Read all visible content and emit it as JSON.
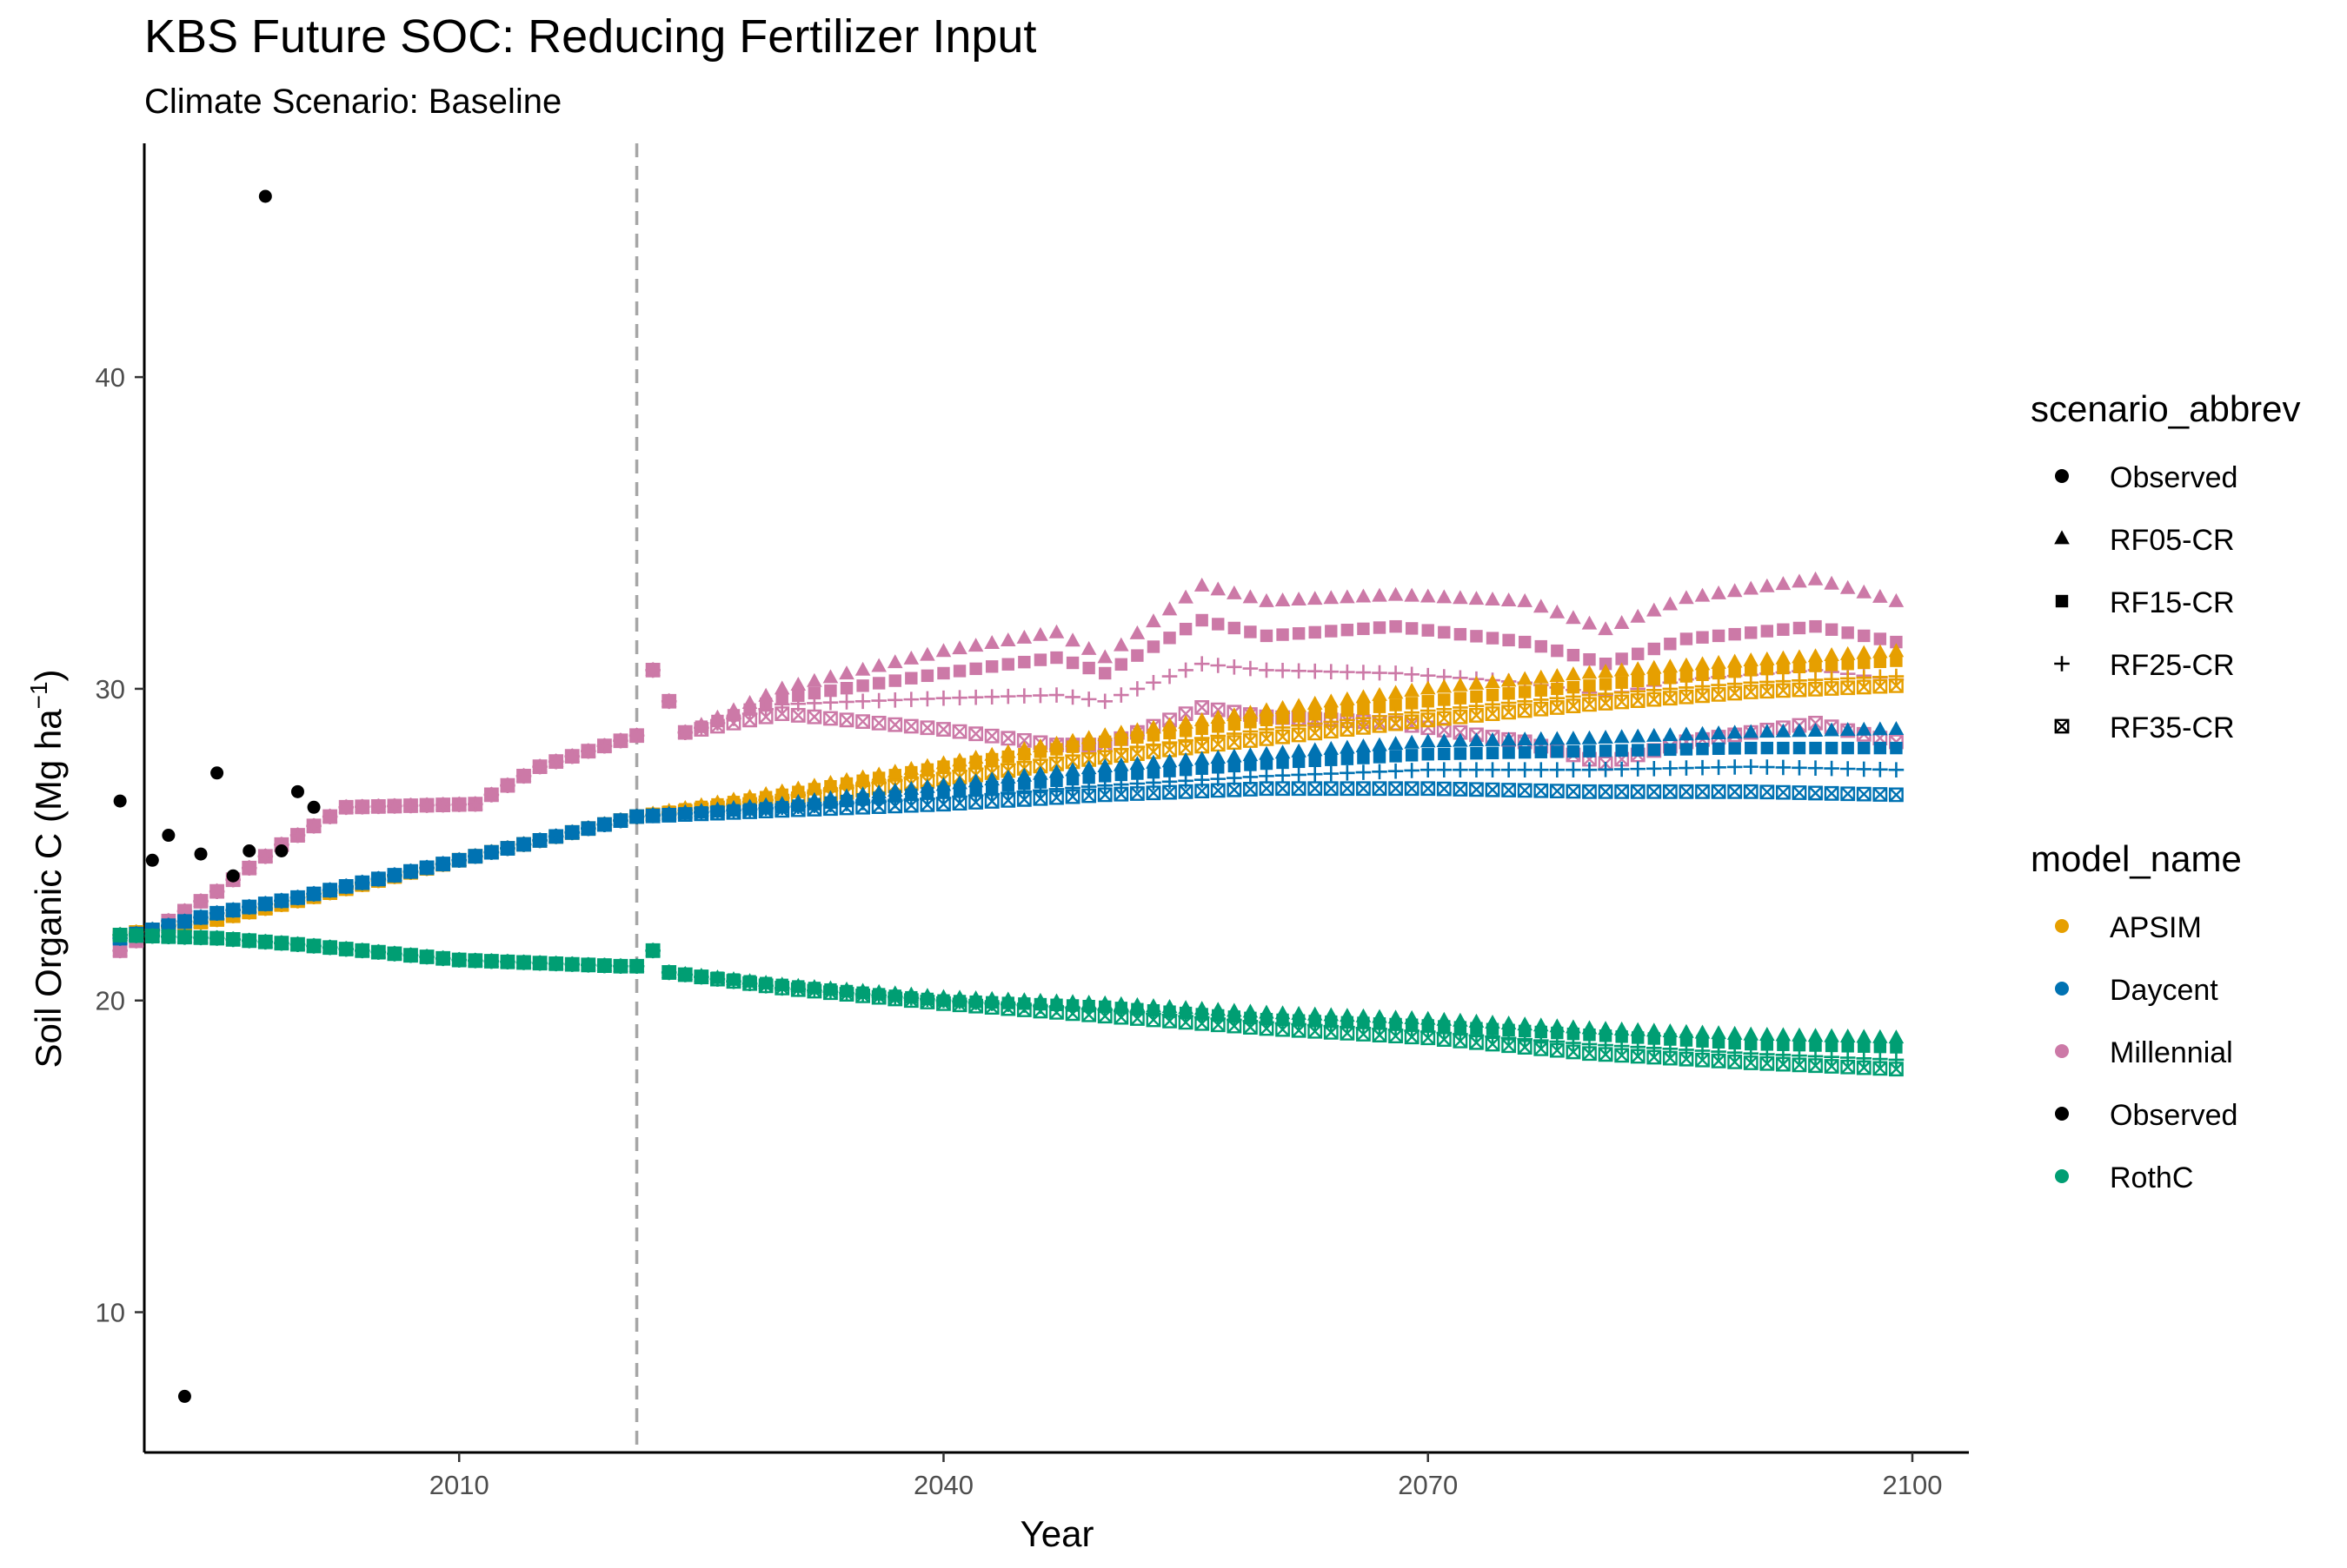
{
  "chart_data": {
    "type": "scatter",
    "title": "KBS  Future SOC: Reducing Fertilizer Input",
    "subtitle": "Climate Scenario: Baseline",
    "xlabel": "Year",
    "ylabel": "Soil Organic C (Mg ha",
    "ylabel_sup": "−1",
    "ylabel_end": ")",
    "xlim": [
      1990.5,
      2103.5
    ],
    "ylim": [
      5.5,
      47.5
    ],
    "x_ticks": [
      2010,
      2040,
      2070,
      2100
    ],
    "x_tick_labels": [
      "2010",
      "2040",
      "2070",
      "2100"
    ],
    "y_ticks": [
      10,
      20,
      30,
      40
    ],
    "y_tick_labels": [
      "10",
      "20",
      "30",
      "40"
    ],
    "grid": false,
    "legend_position": "right",
    "reference_line": {
      "x": 2021,
      "style": "dashed",
      "color": "#a6a6a6"
    },
    "colors": {
      "APSIM": "#E69F00",
      "Daycent": "#0072B2",
      "Millennial": "#CC79A7",
      "Observed": "#000000",
      "RothC": "#009E73"
    },
    "legend_scenario": {
      "title": "scenario_abbrev",
      "items": [
        {
          "label": "Observed",
          "shape": "circle"
        },
        {
          "label": "RF05-CR",
          "shape": "triangle"
        },
        {
          "label": "RF15-CR",
          "shape": "square"
        },
        {
          "label": "RF25-CR",
          "shape": "plus"
        },
        {
          "label": "RF35-CR",
          "shape": "boxed-x"
        }
      ]
    },
    "legend_model": {
      "title": "model_name",
      "items": [
        {
          "label": "APSIM",
          "color": "#E69F00"
        },
        {
          "label": "Daycent",
          "color": "#0072B2"
        },
        {
          "label": "Millennial",
          "color": "#CC79A7"
        },
        {
          "label": "Observed",
          "color": "#000000"
        },
        {
          "label": "RothC",
          "color": "#009E73"
        }
      ]
    },
    "observed": {
      "x": [
        1989,
        1991,
        1992,
        1994,
        1995,
        1996,
        1997,
        1998,
        1999,
        2000,
        2001
      ],
      "y": [
        26.4,
        24.5,
        25.3,
        24.7,
        27.3,
        24.0,
        24.8,
        45.8,
        24.8,
        26.7,
        26.2
      ]
    },
    "observed_low": {
      "x": [
        1993
      ],
      "y": [
        7.3
      ]
    },
    "series": [
      {
        "model": "Millennial",
        "scenario": "RF05-CR",
        "anchors": [
          [
            1989,
            21.6
          ],
          [
            1995,
            23.5
          ],
          [
            1999,
            25.0
          ],
          [
            2003,
            26.2
          ],
          [
            2011,
            26.3
          ],
          [
            2015,
            27.5
          ],
          [
            2021,
            28.5
          ],
          [
            2022,
            30.6
          ],
          [
            2024,
            28.6
          ],
          [
            2030,
            30.0
          ],
          [
            2040,
            31.2
          ],
          [
            2047,
            31.8
          ],
          [
            2050,
            31.0
          ],
          [
            2056,
            33.3
          ],
          [
            2060,
            32.8
          ],
          [
            2068,
            33.0
          ],
          [
            2076,
            32.8
          ],
          [
            2081,
            31.9
          ],
          [
            2086,
            32.9
          ],
          [
            2094,
            33.5
          ],
          [
            2099,
            32.8
          ]
        ]
      },
      {
        "model": "Millennial",
        "scenario": "RF15-CR",
        "anchors": [
          [
            1989,
            21.6
          ],
          [
            1995,
            23.5
          ],
          [
            1999,
            25.0
          ],
          [
            2003,
            26.2
          ],
          [
            2011,
            26.3
          ],
          [
            2015,
            27.5
          ],
          [
            2021,
            28.5
          ],
          [
            2022,
            30.6
          ],
          [
            2024,
            28.6
          ],
          [
            2030,
            29.7
          ],
          [
            2040,
            30.5
          ],
          [
            2047,
            31.0
          ],
          [
            2050,
            30.5
          ],
          [
            2056,
            32.2
          ],
          [
            2060,
            31.7
          ],
          [
            2068,
            32.0
          ],
          [
            2076,
            31.5
          ],
          [
            2081,
            30.8
          ],
          [
            2086,
            31.6
          ],
          [
            2094,
            32.0
          ],
          [
            2099,
            31.5
          ]
        ]
      },
      {
        "model": "Millennial",
        "scenario": "RF25-CR",
        "anchors": [
          [
            1989,
            21.6
          ],
          [
            1995,
            23.5
          ],
          [
            1999,
            25.0
          ],
          [
            2003,
            26.2
          ],
          [
            2011,
            26.3
          ],
          [
            2015,
            27.5
          ],
          [
            2021,
            28.5
          ],
          [
            2022,
            30.6
          ],
          [
            2024,
            28.6
          ],
          [
            2030,
            29.5
          ],
          [
            2040,
            29.7
          ],
          [
            2047,
            29.8
          ],
          [
            2050,
            29.6
          ],
          [
            2056,
            30.8
          ],
          [
            2060,
            30.6
          ],
          [
            2068,
            30.5
          ],
          [
            2076,
            30.2
          ],
          [
            2081,
            29.8
          ],
          [
            2086,
            30.3
          ],
          [
            2094,
            30.6
          ],
          [
            2099,
            30.3
          ]
        ]
      },
      {
        "model": "Millennial",
        "scenario": "RF35-CR",
        "anchors": [
          [
            1989,
            21.6
          ],
          [
            1995,
            23.5
          ],
          [
            1999,
            25.0
          ],
          [
            2003,
            26.2
          ],
          [
            2011,
            26.3
          ],
          [
            2015,
            27.5
          ],
          [
            2021,
            28.5
          ],
          [
            2022,
            30.6
          ],
          [
            2024,
            28.6
          ],
          [
            2030,
            29.2
          ],
          [
            2040,
            28.7
          ],
          [
            2047,
            28.2
          ],
          [
            2050,
            28.2
          ],
          [
            2056,
            29.4
          ],
          [
            2060,
            29.1
          ],
          [
            2068,
            28.9
          ],
          [
            2076,
            28.3
          ],
          [
            2081,
            27.6
          ],
          [
            2086,
            28.3
          ],
          [
            2094,
            28.9
          ],
          [
            2099,
            28.3
          ]
        ]
      },
      {
        "model": "APSIM",
        "scenario": "RF05-CR",
        "anchors": [
          [
            1989,
            22.1
          ],
          [
            1995,
            22.6
          ],
          [
            2000,
            23.2
          ],
          [
            2010,
            24.5
          ],
          [
            2021,
            25.9
          ],
          [
            2030,
            26.7
          ],
          [
            2040,
            27.6
          ],
          [
            2050,
            28.5
          ],
          [
            2060,
            29.3
          ],
          [
            2070,
            30.0
          ],
          [
            2080,
            30.5
          ],
          [
            2090,
            30.9
          ],
          [
            2099,
            31.2
          ]
        ]
      },
      {
        "model": "APSIM",
        "scenario": "RF15-CR",
        "anchors": [
          [
            1989,
            22.1
          ],
          [
            1995,
            22.6
          ],
          [
            2000,
            23.2
          ],
          [
            2010,
            24.5
          ],
          [
            2021,
            25.9
          ],
          [
            2030,
            26.6
          ],
          [
            2040,
            27.5
          ],
          [
            2050,
            28.3
          ],
          [
            2060,
            29.0
          ],
          [
            2070,
            29.6
          ],
          [
            2080,
            30.1
          ],
          [
            2090,
            30.6
          ],
          [
            2099,
            30.9
          ]
        ]
      },
      {
        "model": "APSIM",
        "scenario": "RF25-CR",
        "anchors": [
          [
            1989,
            22.1
          ],
          [
            1995,
            22.6
          ],
          [
            2000,
            23.2
          ],
          [
            2010,
            24.5
          ],
          [
            2021,
            25.9
          ],
          [
            2030,
            26.5
          ],
          [
            2040,
            27.3
          ],
          [
            2050,
            28.0
          ],
          [
            2060,
            28.7
          ],
          [
            2070,
            29.3
          ],
          [
            2080,
            29.8
          ],
          [
            2090,
            30.2
          ],
          [
            2099,
            30.4
          ]
        ]
      },
      {
        "model": "APSIM",
        "scenario": "RF35-CR",
        "anchors": [
          [
            1989,
            22.1
          ],
          [
            1995,
            22.6
          ],
          [
            2000,
            23.2
          ],
          [
            2010,
            24.5
          ],
          [
            2021,
            25.9
          ],
          [
            2030,
            26.4
          ],
          [
            2040,
            27.1
          ],
          [
            2050,
            27.8
          ],
          [
            2060,
            28.4
          ],
          [
            2070,
            29.0
          ],
          [
            2080,
            29.5
          ],
          [
            2090,
            29.9
          ],
          [
            2099,
            30.1
          ]
        ]
      },
      {
        "model": "Daycent",
        "scenario": "RF05-CR",
        "anchors": [
          [
            1989,
            22.0
          ],
          [
            1995,
            22.8
          ],
          [
            2000,
            23.3
          ],
          [
            2010,
            24.5
          ],
          [
            2021,
            25.9
          ],
          [
            2030,
            26.3
          ],
          [
            2040,
            26.9
          ],
          [
            2050,
            27.5
          ],
          [
            2060,
            27.9
          ],
          [
            2070,
            28.3
          ],
          [
            2080,
            28.4
          ],
          [
            2090,
            28.6
          ],
          [
            2099,
            28.7
          ]
        ]
      },
      {
        "model": "Daycent",
        "scenario": "RF15-CR",
        "anchors": [
          [
            1989,
            22.0
          ],
          [
            1995,
            22.8
          ],
          [
            2000,
            23.3
          ],
          [
            2010,
            24.5
          ],
          [
            2021,
            25.9
          ],
          [
            2030,
            26.2
          ],
          [
            2040,
            26.7
          ],
          [
            2050,
            27.2
          ],
          [
            2060,
            27.6
          ],
          [
            2070,
            27.9
          ],
          [
            2080,
            28.0
          ],
          [
            2090,
            28.1
          ],
          [
            2099,
            28.1
          ]
        ]
      },
      {
        "model": "Daycent",
        "scenario": "RF25-CR",
        "anchors": [
          [
            1989,
            22.0
          ],
          [
            1995,
            22.8
          ],
          [
            2000,
            23.3
          ],
          [
            2010,
            24.5
          ],
          [
            2021,
            25.9
          ],
          [
            2030,
            26.2
          ],
          [
            2040,
            26.5
          ],
          [
            2050,
            26.9
          ],
          [
            2060,
            27.2
          ],
          [
            2070,
            27.4
          ],
          [
            2080,
            27.4
          ],
          [
            2090,
            27.5
          ],
          [
            2099,
            27.4
          ]
        ]
      },
      {
        "model": "Daycent",
        "scenario": "RF35-CR",
        "anchors": [
          [
            1989,
            22.0
          ],
          [
            1995,
            22.8
          ],
          [
            2000,
            23.3
          ],
          [
            2010,
            24.5
          ],
          [
            2021,
            25.9
          ],
          [
            2030,
            26.1
          ],
          [
            2040,
            26.3
          ],
          [
            2050,
            26.6
          ],
          [
            2060,
            26.8
          ],
          [
            2070,
            26.8
          ],
          [
            2080,
            26.7
          ],
          [
            2090,
            26.7
          ],
          [
            2099,
            26.6
          ]
        ]
      },
      {
        "model": "RothC",
        "scenario": "RF05-CR",
        "anchors": [
          [
            1989,
            22.1
          ],
          [
            1995,
            22.0
          ],
          [
            2000,
            21.8
          ],
          [
            2010,
            21.3
          ],
          [
            2020,
            21.1
          ],
          [
            2021,
            21.1
          ],
          [
            2022,
            21.6
          ],
          [
            2023,
            20.9
          ],
          [
            2030,
            20.5
          ],
          [
            2040,
            20.1
          ],
          [
            2050,
            19.9
          ],
          [
            2060,
            19.6
          ],
          [
            2070,
            19.4
          ],
          [
            2080,
            19.1
          ],
          [
            2090,
            18.9
          ],
          [
            2099,
            18.8
          ]
        ]
      },
      {
        "model": "RothC",
        "scenario": "RF15-CR",
        "anchors": [
          [
            1989,
            22.1
          ],
          [
            1995,
            22.0
          ],
          [
            2000,
            21.8
          ],
          [
            2010,
            21.3
          ],
          [
            2020,
            21.1
          ],
          [
            2021,
            21.1
          ],
          [
            2022,
            21.6
          ],
          [
            2023,
            20.9
          ],
          [
            2030,
            20.5
          ],
          [
            2040,
            20.0
          ],
          [
            2050,
            19.8
          ],
          [
            2060,
            19.4
          ],
          [
            2070,
            19.2
          ],
          [
            2080,
            18.9
          ],
          [
            2090,
            18.6
          ],
          [
            2099,
            18.5
          ]
        ]
      },
      {
        "model": "RothC",
        "scenario": "RF25-CR",
        "anchors": [
          [
            1989,
            22.1
          ],
          [
            1995,
            22.0
          ],
          [
            2000,
            21.8
          ],
          [
            2010,
            21.3
          ],
          [
            2020,
            21.1
          ],
          [
            2021,
            21.1
          ],
          [
            2022,
            21.6
          ],
          [
            2023,
            20.9
          ],
          [
            2030,
            20.4
          ],
          [
            2040,
            20.0
          ],
          [
            2050,
            19.7
          ],
          [
            2060,
            19.3
          ],
          [
            2070,
            19.0
          ],
          [
            2080,
            18.6
          ],
          [
            2090,
            18.3
          ],
          [
            2099,
            18.1
          ]
        ]
      },
      {
        "model": "RothC",
        "scenario": "RF35-CR",
        "anchors": [
          [
            1989,
            22.1
          ],
          [
            1995,
            22.0
          ],
          [
            2000,
            21.8
          ],
          [
            2010,
            21.3
          ],
          [
            2020,
            21.1
          ],
          [
            2021,
            21.1
          ],
          [
            2022,
            21.6
          ],
          [
            2023,
            20.9
          ],
          [
            2030,
            20.4
          ],
          [
            2040,
            19.9
          ],
          [
            2050,
            19.5
          ],
          [
            2060,
            19.1
          ],
          [
            2070,
            18.8
          ],
          [
            2080,
            18.3
          ],
          [
            2090,
            18.0
          ],
          [
            2099,
            17.8
          ]
        ]
      }
    ]
  }
}
